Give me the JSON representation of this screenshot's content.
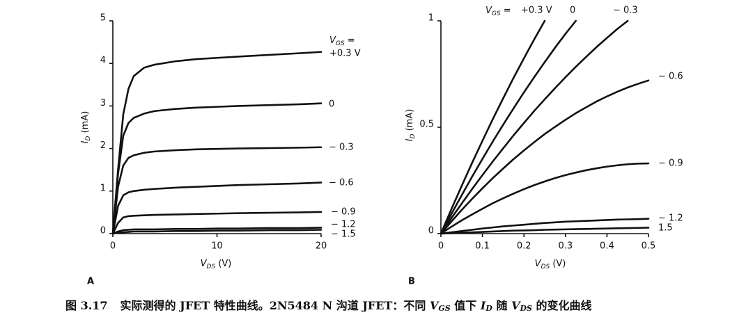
{
  "chart_data": [
    {
      "type": "line",
      "panel": "A",
      "xlabel": [
        "V",
        "DS",
        " (V)"
      ],
      "ylabel": [
        "I",
        "D",
        " (mA)"
      ],
      "legend_title": [
        "V",
        "GS",
        " ="
      ],
      "x": [
        0,
        0.5,
        1,
        1.5,
        2,
        3,
        4,
        6,
        8,
        10,
        12,
        15,
        18,
        20
      ],
      "xlim": [
        0,
        20
      ],
      "xticks": [
        0,
        10,
        20
      ],
      "ylim": [
        0,
        5
      ],
      "yticks": [
        0,
        1,
        2,
        3,
        4,
        5
      ],
      "series": [
        {
          "name": "+0.3 V",
          "color": "#111111",
          "values": [
            0,
            1.5,
            2.8,
            3.4,
            3.7,
            3.9,
            3.97,
            4.05,
            4.1,
            4.13,
            4.16,
            4.2,
            4.24,
            4.27
          ]
        },
        {
          "name": "0",
          "color": "#111111",
          "values": [
            0,
            1.4,
            2.3,
            2.6,
            2.72,
            2.82,
            2.88,
            2.93,
            2.96,
            2.98,
            3.0,
            3.02,
            3.04,
            3.06
          ]
        },
        {
          "name": "− 0.3",
          "color": "#111111",
          "values": [
            0,
            1.1,
            1.6,
            1.78,
            1.84,
            1.9,
            1.93,
            1.96,
            1.98,
            1.99,
            2.0,
            2.01,
            2.02,
            2.03
          ]
        },
        {
          "name": "− 0.6",
          "color": "#111111",
          "values": [
            0,
            0.65,
            0.9,
            0.97,
            1.0,
            1.03,
            1.05,
            1.08,
            1.1,
            1.12,
            1.14,
            1.16,
            1.18,
            1.2
          ]
        },
        {
          "name": "− 0.9",
          "color": "#111111",
          "values": [
            0,
            0.25,
            0.38,
            0.41,
            0.42,
            0.43,
            0.44,
            0.45,
            0.46,
            0.47,
            0.48,
            0.49,
            0.5,
            0.51
          ]
        },
        {
          "name": "− 1.2",
          "color": "#111111",
          "values": [
            0,
            0.05,
            0.08,
            0.09,
            0.1,
            0.1,
            0.1,
            0.11,
            0.11,
            0.12,
            0.12,
            0.13,
            0.13,
            0.14
          ]
        },
        {
          "name": "− 1.5",
          "color": "#111111",
          "values": [
            0,
            0.02,
            0.03,
            0.04,
            0.05,
            0.05,
            0.05,
            0.06,
            0.06,
            0.07,
            0.07,
            0.08,
            0.08,
            0.09
          ]
        }
      ]
    },
    {
      "type": "line",
      "panel": "B",
      "xlabel": [
        "V",
        "DS",
        " (V)"
      ],
      "ylabel": [
        "I",
        "D",
        " (mA)"
      ],
      "legend_title": [
        "V",
        "GS",
        " ="
      ],
      "x": [
        0,
        0.025,
        0.05,
        0.075,
        0.1,
        0.125,
        0.15,
        0.175,
        0.2,
        0.225,
        0.25,
        0.275,
        0.3,
        0.325,
        0.35,
        0.375,
        0.4,
        0.425,
        0.45,
        0.475,
        0.5
      ],
      "xlim": [
        0,
        0.5
      ],
      "xticks": [
        0,
        0.1,
        0.2,
        0.3,
        0.4,
        0.5
      ],
      "ylim": [
        0,
        1
      ],
      "yticks": [
        0,
        0.5,
        1
      ],
      "series": [
        {
          "name": "+0.3 V",
          "color": "#111111",
          "values": [
            0,
            0.114,
            0.224,
            0.332,
            0.436,
            0.538,
            0.636,
            0.732,
            0.824,
            0.914,
            1.0,
            null,
            null,
            null,
            null,
            null,
            null,
            null,
            null,
            null,
            null
          ]
        },
        {
          "name": "0",
          "color": "#111111",
          "values": [
            0,
            0.091,
            0.18,
            0.267,
            0.351,
            0.433,
            0.512,
            0.589,
            0.664,
            0.736,
            0.806,
            0.874,
            0.939,
            1.0,
            null,
            null,
            null,
            null,
            null,
            null,
            null
          ]
        },
        {
          "name": "− 0.3",
          "color": "#111111",
          "values": [
            0,
            0.072,
            0.141,
            0.209,
            0.275,
            0.339,
            0.401,
            0.462,
            0.52,
            0.577,
            0.631,
            0.684,
            0.735,
            0.784,
            0.831,
            0.877,
            0.92,
            0.962,
            1.0,
            null,
            null
          ]
        },
        {
          "name": "− 0.6",
          "color": "#111111",
          "values": [
            0,
            0.056,
            0.111,
            0.163,
            0.213,
            0.261,
            0.306,
            0.35,
            0.391,
            0.43,
            0.468,
            0.502,
            0.535,
            0.566,
            0.594,
            0.621,
            0.645,
            0.667,
            0.687,
            0.704,
            0.72
          ]
        },
        {
          "name": "− 0.9",
          "color": "#111111",
          "values": [
            0,
            0.032,
            0.062,
            0.09,
            0.117,
            0.143,
            0.166,
            0.188,
            0.209,
            0.228,
            0.245,
            0.261,
            0.275,
            0.287,
            0.298,
            0.307,
            0.315,
            0.321,
            0.326,
            0.329,
            0.33
          ]
        },
        {
          "name": "− 1.2",
          "color": "#111111",
          "values": [
            0,
            0.006,
            0.012,
            0.018,
            0.024,
            0.029,
            0.034,
            0.038,
            0.042,
            0.046,
            0.05,
            0.053,
            0.056,
            0.058,
            0.06,
            0.062,
            0.064,
            0.066,
            0.067,
            0.068,
            0.07
          ]
        },
        {
          "name": "1.5",
          "color": "#111111",
          "values": [
            0,
            0.002,
            0.004,
            0.006,
            0.008,
            0.01,
            0.012,
            0.014,
            0.015,
            0.016,
            0.018,
            0.019,
            0.02,
            0.021,
            0.022,
            0.023,
            0.024,
            0.025,
            0.026,
            0.027,
            0.028
          ]
        }
      ]
    }
  ],
  "caption": [
    "图 3.17",
    "实际测得的 JFET 特性曲线。2N5484 N 沟道 JFET：不同 ",
    "V",
    "GS",
    " 值下 ",
    "I",
    "D",
    " 随 ",
    "V",
    "DS",
    " 的变化曲线"
  ]
}
